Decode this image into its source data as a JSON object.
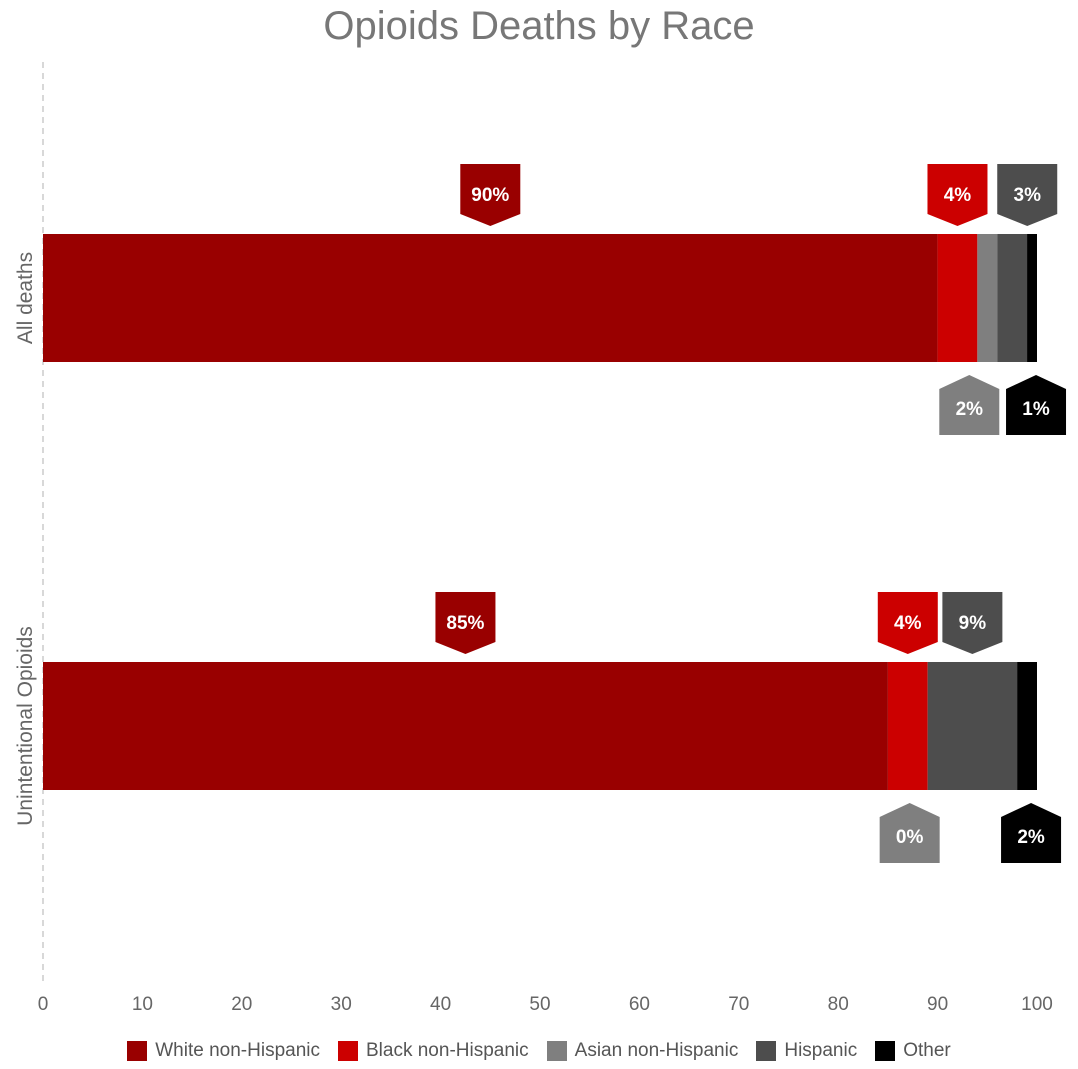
{
  "chart_data": {
    "type": "bar",
    "orientation": "horizontal",
    "stacked": true,
    "title": "Opioids Deaths by Race",
    "categories": [
      "All deaths",
      "Unintentional Opioids"
    ],
    "xlim": [
      0,
      100
    ],
    "xticks": [
      "0",
      "10",
      "20",
      "30",
      "40",
      "50",
      "60",
      "70",
      "80",
      "90",
      "100"
    ],
    "grid": false,
    "legend_position": "bottom",
    "series": [
      {
        "name": "White non-Hispanic",
        "color": "#990000",
        "values": [
          90,
          85
        ],
        "labels": [
          "90%",
          "85%"
        ],
        "label_side": [
          "above",
          "above"
        ]
      },
      {
        "name": "Black non-Hispanic",
        "color": "#cc0000",
        "values": [
          4,
          4
        ],
        "labels": [
          "4%",
          "4%"
        ],
        "label_side": [
          "above",
          "above"
        ]
      },
      {
        "name": "Asian non-Hispanic",
        "color": "#7f7f7f",
        "values": [
          2,
          0
        ],
        "labels": [
          "2%",
          "0%"
        ],
        "label_side": [
          "below",
          "below"
        ]
      },
      {
        "name": "Hispanic",
        "color": "#4d4d4d",
        "values": [
          3,
          9
        ],
        "labels": [
          "3%",
          "9%"
        ],
        "label_side": [
          "above",
          "above"
        ]
      },
      {
        "name": "Other",
        "color": "#000000",
        "values": [
          1,
          2
        ],
        "labels": [
          "1%",
          "2%"
        ],
        "label_side": [
          "below",
          "below"
        ]
      }
    ]
  }
}
